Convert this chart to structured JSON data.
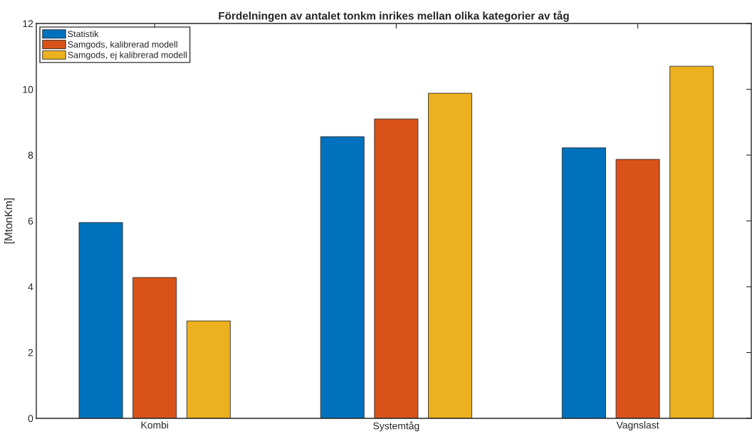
{
  "chart_data": {
    "type": "bar",
    "title": "Fördelningen av antalet tonkm inrikes mellan olika kategorier av tåg",
    "ylabel": "[MtonKm]",
    "categories": [
      "Kombi",
      "Systemtåg",
      "Vagnslast"
    ],
    "series": [
      {
        "name": "Statistik",
        "color": "#0072bd",
        "values": [
          5.95,
          8.56,
          8.22
        ]
      },
      {
        "name": "Samgods, kalibrerad modell",
        "color": "#d95319",
        "values": [
          4.28,
          9.1,
          7.87
        ]
      },
      {
        "name": "Samgods, ej kalibrerad modell",
        "color": "#edb120",
        "values": [
          2.96,
          9.88,
          10.7
        ]
      }
    ],
    "ylim": [
      0,
      12
    ],
    "yticks": [
      0,
      2,
      4,
      6,
      8,
      10,
      12
    ],
    "grid": false,
    "legend": "top left"
  }
}
